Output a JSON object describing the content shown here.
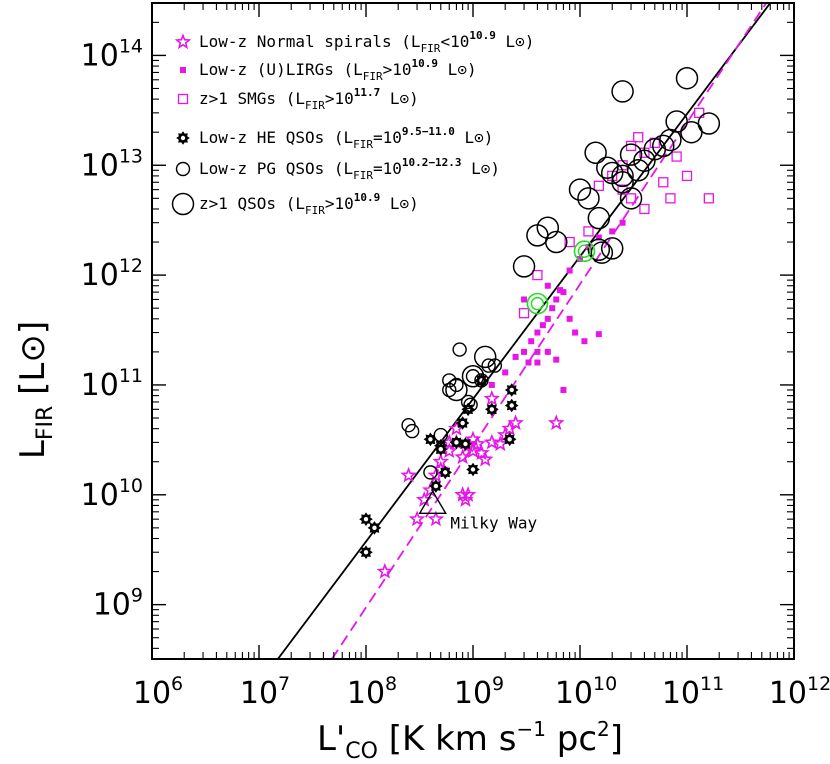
{
  "chart_data": {
    "type": "scatter",
    "x_scale": "log",
    "y_scale": "log",
    "xlim": [
      1000000.0,
      1000000000000.0
    ],
    "ylim": [
      320000000.0,
      300000000000000.0
    ],
    "xlabel": "L'CO [K km s-1 pc2]",
    "ylabel": "LFIR [L⊙]",
    "x_ticks": [
      "10^6",
      "10^7",
      "10^8",
      "10^9",
      "10^10",
      "10^11",
      "10^12"
    ],
    "y_ticks": [
      "10^9",
      "10^10",
      "10^11",
      "10^12",
      "10^13",
      "10^14"
    ],
    "legend_placement": "top-left",
    "colors": {
      "magenta": "#e815e8",
      "black": "#000000",
      "green": "#22dd22"
    },
    "fit_lines": [
      {
        "style": "solid",
        "color": "#000000",
        "x": [
          15000000.0,
          600000000000.0
        ],
        "y": [
          320000000.0,
          300000000000000.0
        ]
      },
      {
        "style": "dashed",
        "color": "#e815e8",
        "x": [
          48000000.0,
          550000000000.0
        ],
        "y": [
          320000000.0,
          300000000000000.0
        ]
      }
    ],
    "annotations": [
      {
        "text": "Milky Way",
        "x": 400000000.0,
        "y": 8000000000.0
      }
    ],
    "series": [
      {
        "name": "Low-z Normal spirals",
        "legend": {
          "prefix": "Low-z Normal spirals (L",
          "sub": "FIR",
          "mid": "<10",
          "sup": "10.9",
          "suffix": " L⊙)"
        },
        "marker": "star",
        "color": "#e815e8",
        "points": [
          [
            150000000.0,
            2000000000.0
          ],
          [
            250000000.0,
            15000000000.0
          ],
          [
            300000000.0,
            6000000000.0
          ],
          [
            450000000.0,
            6000000000.0
          ],
          [
            350000000.0,
            9000000000.0
          ],
          [
            400000000.0,
            11000000000.0
          ],
          [
            450000000.0,
            15000000000.0
          ],
          [
            500000000.0,
            20000000000.0
          ],
          [
            600000000.0,
            25000000000.0
          ],
          [
            700000000.0,
            30000000000.0
          ],
          [
            800000000.0,
            10000000000.0
          ],
          [
            800000000.0,
            22000000000.0
          ],
          [
            900000000.0,
            28000000000.0
          ],
          [
            1000000000.0,
            32000000000.0
          ],
          [
            1200000000.0,
            24000000000.0
          ],
          [
            1500000000.0,
            30000000000.0
          ],
          [
            2000000000.0,
            35000000000.0
          ],
          [
            2200000000.0,
            40000000000.0
          ],
          [
            2500000000.0,
            45000000000.0
          ],
          [
            1500000000.0,
            75000000000.0
          ],
          [
            6000000000.0,
            45000000000.0
          ],
          [
            700000000.0,
            40000000000.0
          ],
          [
            500000000.0,
            17000000000.0
          ],
          [
            900000000.0,
            10000000000.0
          ],
          [
            1000000000.0,
            25000000000.0
          ],
          [
            1300000000.0,
            21000000000.0
          ],
          [
            1800000000.0,
            29000000000.0
          ],
          [
            600000000.0,
            30000000000.0
          ],
          [
            850000000.0,
            9000000000.0
          ],
          [
            1100000000.0,
            29000000000.0
          ]
        ]
      },
      {
        "name": "Low-z (U)LIRGs",
        "legend": {
          "prefix": "Low-z (U)LIRGs (L",
          "sub": "FIR",
          "mid": ">10",
          "sup": "10.9",
          "suffix": " L⊙)"
        },
        "marker": "filled-square",
        "color": "#e815e8",
        "points": [
          [
            1500000000.0,
            100000000000.0
          ],
          [
            2000000000.0,
            130000000000.0
          ],
          [
            2500000000.0,
            180000000000.0
          ],
          [
            3000000000.0,
            200000000000.0
          ],
          [
            3500000000.0,
            250000000000.0
          ],
          [
            4000000000.0,
            300000000000.0
          ],
          [
            4500000000.0,
            350000000000.0
          ],
          [
            5000000000.0,
            400000000000.0
          ],
          [
            5500000000.0,
            500000000000.0
          ],
          [
            6000000000.0,
            600000000000.0
          ],
          [
            7000000000.0,
            700000000000.0
          ],
          [
            8000000000.0,
            1100000000000.0
          ],
          [
            10000000000.0,
            1400000000000.0
          ],
          [
            12000000000.0,
            1800000000000.0
          ],
          [
            15000000000.0,
            2200000000000.0
          ],
          [
            20000000000.0,
            2500000000000.0
          ],
          [
            25000000000.0,
            3000000000000.0
          ],
          [
            4000000000.0,
            160000000000.0
          ],
          [
            5000000000.0,
            200000000000.0
          ],
          [
            7000000000.0,
            90000000000.0
          ],
          [
            9000000000.0,
            300000000000.0
          ],
          [
            11000000000.0,
            250000000000.0
          ],
          [
            8000000000.0,
            400000000000.0
          ],
          [
            3000000000.0,
            600000000000.0
          ],
          [
            5000000000.0,
            800000000000.0
          ],
          [
            4000000000.0,
            200000000000.0
          ],
          [
            6000000000.0,
            170000000000.0
          ],
          [
            3300000000.0,
            160000000000.0
          ],
          [
            6500000000.0,
            730000000000.0
          ],
          [
            15000000000.0,
            290000000000.0
          ]
        ]
      },
      {
        "name": "z>1 SMGs",
        "legend": {
          "prefix": "z>1 SMGs (L",
          "sub": "FIR",
          "mid": ">10",
          "sup": "11.7",
          "suffix": " L⊙)"
        },
        "marker": "open-square",
        "color": "#e815e8",
        "points": [
          [
            3000000000.0,
            450000000000.0
          ],
          [
            4000000000.0,
            1000000000000.0
          ],
          [
            8000000000.0,
            2000000000000.0
          ],
          [
            12000000000.0,
            2500000000000.0
          ],
          [
            15000000000.0,
            6500000000000.0
          ],
          [
            20000000000.0,
            8000000000000.0
          ],
          [
            25000000000.0,
            10000000000000.0
          ],
          [
            30000000000.0,
            15000000000000.0
          ],
          [
            35000000000.0,
            18000000000000.0
          ],
          [
            40000000000.0,
            13000000000000.0
          ],
          [
            50000000000.0,
            16000000000000.0
          ],
          [
            60000000000.0,
            7000000000000.0
          ],
          [
            70000000000.0,
            5000000000000.0
          ],
          [
            80000000000.0,
            12000000000000.0
          ],
          [
            100000000000.0,
            8000000000000.0
          ],
          [
            130000000000.0,
            30000000000000.0
          ],
          [
            160000000000.0,
            5000000000000.0
          ],
          [
            30000000000.0,
            5000000000000.0
          ],
          [
            40000000000.0,
            4000000000000.0
          ],
          [
            25000000000.0,
            6000000000000.0
          ]
        ]
      },
      {
        "name": "Low-z HE QSOs",
        "legend": {
          "prefix": "Low-z HE QSOs (L",
          "sub": "FIR",
          "mid": "=10",
          "sup": "9.5−11.0",
          "suffix": " L⊙)"
        },
        "marker": "gear",
        "color": "#000000",
        "points": [
          [
            100000000.0,
            6000000000.0
          ],
          [
            120000000.0,
            5000000000.0
          ],
          [
            100000000.0,
            3000000000.0
          ],
          [
            400000000.0,
            32000000000.0
          ],
          [
            450000000.0,
            12000000000.0
          ],
          [
            500000000.0,
            28000000000.0
          ],
          [
            550000000.0,
            16000000000.0
          ],
          [
            700000000.0,
            30000000000.0
          ],
          [
            800000000.0,
            45000000000.0
          ],
          [
            900000000.0,
            60000000000.0
          ],
          [
            1000000000.0,
            17000000000.0
          ],
          [
            1200000000.0,
            110000000000.0
          ],
          [
            1500000000.0,
            60000000000.0
          ],
          [
            2300000000.0,
            90000000000.0
          ],
          [
            2300000000.0,
            65000000000.0
          ],
          [
            2200000000.0,
            32000000000.0
          ],
          [
            500000000.0,
            26000000000.0
          ],
          [
            850000000.0,
            29000000000.0
          ]
        ]
      },
      {
        "name": "Low-z PG QSOs",
        "legend": {
          "prefix": "Low-z PG QSOs (L",
          "sub": "FIR",
          "mid": "=10",
          "sup": "10.2−12.3",
          "suffix": " L⊙)"
        },
        "marker": "open-circle",
        "color": "#000000",
        "points": [
          [
            250000000.0,
            43000000000.0
          ],
          [
            270000000.0,
            38000000000.0
          ],
          [
            400000000.0,
            16000000000.0
          ],
          [
            500000000.0,
            35000000000.0
          ],
          [
            600000000.0,
            90000000000.0
          ],
          [
            700000000.0,
            100000000000.0
          ],
          [
            750000000.0,
            210000000000.0
          ],
          [
            900000000.0,
            70000000000.0
          ],
          [
            1000000000.0,
            120000000000.0
          ],
          [
            1200000000.0,
            110000000000.0
          ],
          [
            1400000000.0,
            150000000000.0
          ],
          [
            600000000.0,
            110000000000.0
          ],
          [
            950000000.0,
            66000000000.0
          ],
          [
            1600000000.0,
            150000000000.0
          ]
        ]
      },
      {
        "name": "z>1 QSOs",
        "legend": {
          "prefix": "z>1 QSOs (L",
          "sub": "FIR",
          "mid": ">10",
          "sup": "10.9",
          "suffix": " L⊙)"
        },
        "marker": "open-circle-large",
        "color": "#000000",
        "points": [
          [
            700000000.0,
            90000000000.0
          ],
          [
            1000000000.0,
            120000000000.0
          ],
          [
            1300000000.0,
            180000000000.0
          ],
          [
            3000000000.0,
            1200000000000.0
          ],
          [
            4000000000.0,
            2300000000000.0
          ],
          [
            5000000000.0,
            2700000000000.0
          ],
          [
            6000000000.0,
            2000000000000.0
          ],
          [
            10000000000.0,
            6000000000000.0
          ],
          [
            12000000000.0,
            5000000000000.0
          ],
          [
            15000000000.0,
            3300000000000.0
          ],
          [
            16000000000.0,
            1600000000000.0
          ],
          [
            18000000000.0,
            9500000000000.0
          ],
          [
            20000000000.0,
            8500000000000.0
          ],
          [
            25000000000.0,
            7000000000000.0
          ],
          [
            30000000000.0,
            12500000000000.0
          ],
          [
            35000000000.0,
            9000000000000.0
          ],
          [
            40000000000.0,
            11000000000000.0
          ],
          [
            50000000000.0,
            14000000000000.0
          ],
          [
            60000000000.0,
            15000000000000.0
          ],
          [
            70000000000.0,
            17000000000000.0
          ],
          [
            80000000000.0,
            25000000000000.0
          ],
          [
            100000000000.0,
            62000000000000.0
          ],
          [
            110000000000.0,
            20000000000000.0
          ],
          [
            160000000000.0,
            24000000000000.0
          ],
          [
            25000000000.0,
            47000000000000.0
          ],
          [
            14000000000.0,
            13000000000000.0
          ],
          [
            20000000000.0,
            1750000000000.0
          ],
          [
            30000000000.0,
            5000000000000.0
          ],
          [
            25000000000.0,
            8000000000000.0
          ],
          [
            15000000000.0,
            1700000000000.0
          ]
        ]
      },
      {
        "name": "",
        "marker": "green-circle",
        "color": "#22dd22",
        "points": [
          [
            4000000000.0,
            550000000000.0
          ],
          [
            11000000000.0,
            1650000000000.0
          ]
        ]
      },
      {
        "name": "",
        "marker": "triangle",
        "color": "#000000",
        "points": [
          [
            420000000.0,
            8200000000.0
          ]
        ]
      }
    ]
  }
}
